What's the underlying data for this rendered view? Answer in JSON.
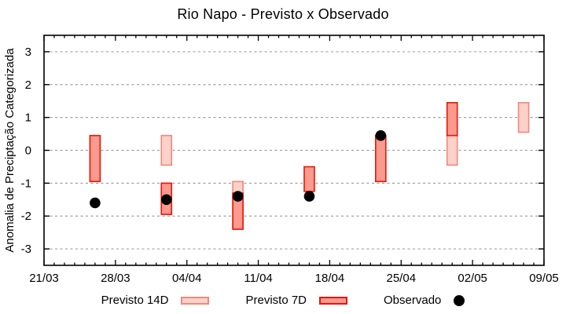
{
  "chart_data": {
    "type": "bar",
    "subtype": "range-bars-with-points",
    "title": "Rio Napo - Previsto x Observado",
    "ylabel": "Anomalia de Preciptação Categorizada",
    "xlabel": "",
    "ylim": [
      -3.5,
      3.5
    ],
    "yticks": [
      3,
      2,
      1,
      0,
      -1,
      -2,
      -3
    ],
    "x_days_total": 49,
    "x_major_every_days": 7,
    "x_minor_every_days": 1,
    "x_tick_labels": [
      "21/03",
      "28/03",
      "04/04",
      "11/04",
      "18/04",
      "25/04",
      "02/05",
      "09/05"
    ],
    "grid": {
      "show": true,
      "style": "dotted",
      "color": "#a0a0a0"
    },
    "axis_color": "#000000",
    "legend_position": "bottom",
    "series": [
      {
        "name": "Previsto 14D",
        "kind": "range",
        "fill": "#fbd1c9",
        "stroke": "#f0897b",
        "bars": [
          {
            "day": 12,
            "date": "02/04",
            "high": 0.45,
            "low": -0.45
          },
          {
            "day": 19,
            "date": "09/04",
            "high": -0.95,
            "low": -2.4
          },
          {
            "day": 40,
            "date": "30/04",
            "high": 0.45,
            "low": -0.45
          },
          {
            "day": 47,
            "date": "07/05",
            "high": 1.45,
            "low": 0.55
          }
        ]
      },
      {
        "name": "Previsto 7D",
        "kind": "range",
        "fill": "#fb9a8e",
        "stroke": "#e81507",
        "bars": [
          {
            "day": 5,
            "date": "26/03",
            "high": 0.45,
            "low": -0.95
          },
          {
            "day": 12,
            "date": "02/04",
            "high": -1.0,
            "low": -1.95
          },
          {
            "day": 19,
            "date": "09/04",
            "high": -1.3,
            "low": -2.4
          },
          {
            "day": 26,
            "date": "16/04",
            "high": -0.5,
            "low": -1.25
          },
          {
            "day": 33,
            "date": "23/04",
            "high": 0.45,
            "low": -0.95
          },
          {
            "day": 40,
            "date": "30/04",
            "high": 1.45,
            "low": 0.45
          }
        ]
      },
      {
        "name": "Observado",
        "kind": "point",
        "fill": "#000000",
        "points": [
          {
            "day": 5,
            "date": "26/03",
            "value": -1.6
          },
          {
            "day": 12,
            "date": "02/04",
            "value": -1.5
          },
          {
            "day": 19,
            "date": "09/04",
            "value": -1.4
          },
          {
            "day": 26,
            "date": "16/04",
            "value": -1.4
          },
          {
            "day": 33,
            "date": "23/04",
            "value": 0.45
          }
        ]
      }
    ]
  }
}
